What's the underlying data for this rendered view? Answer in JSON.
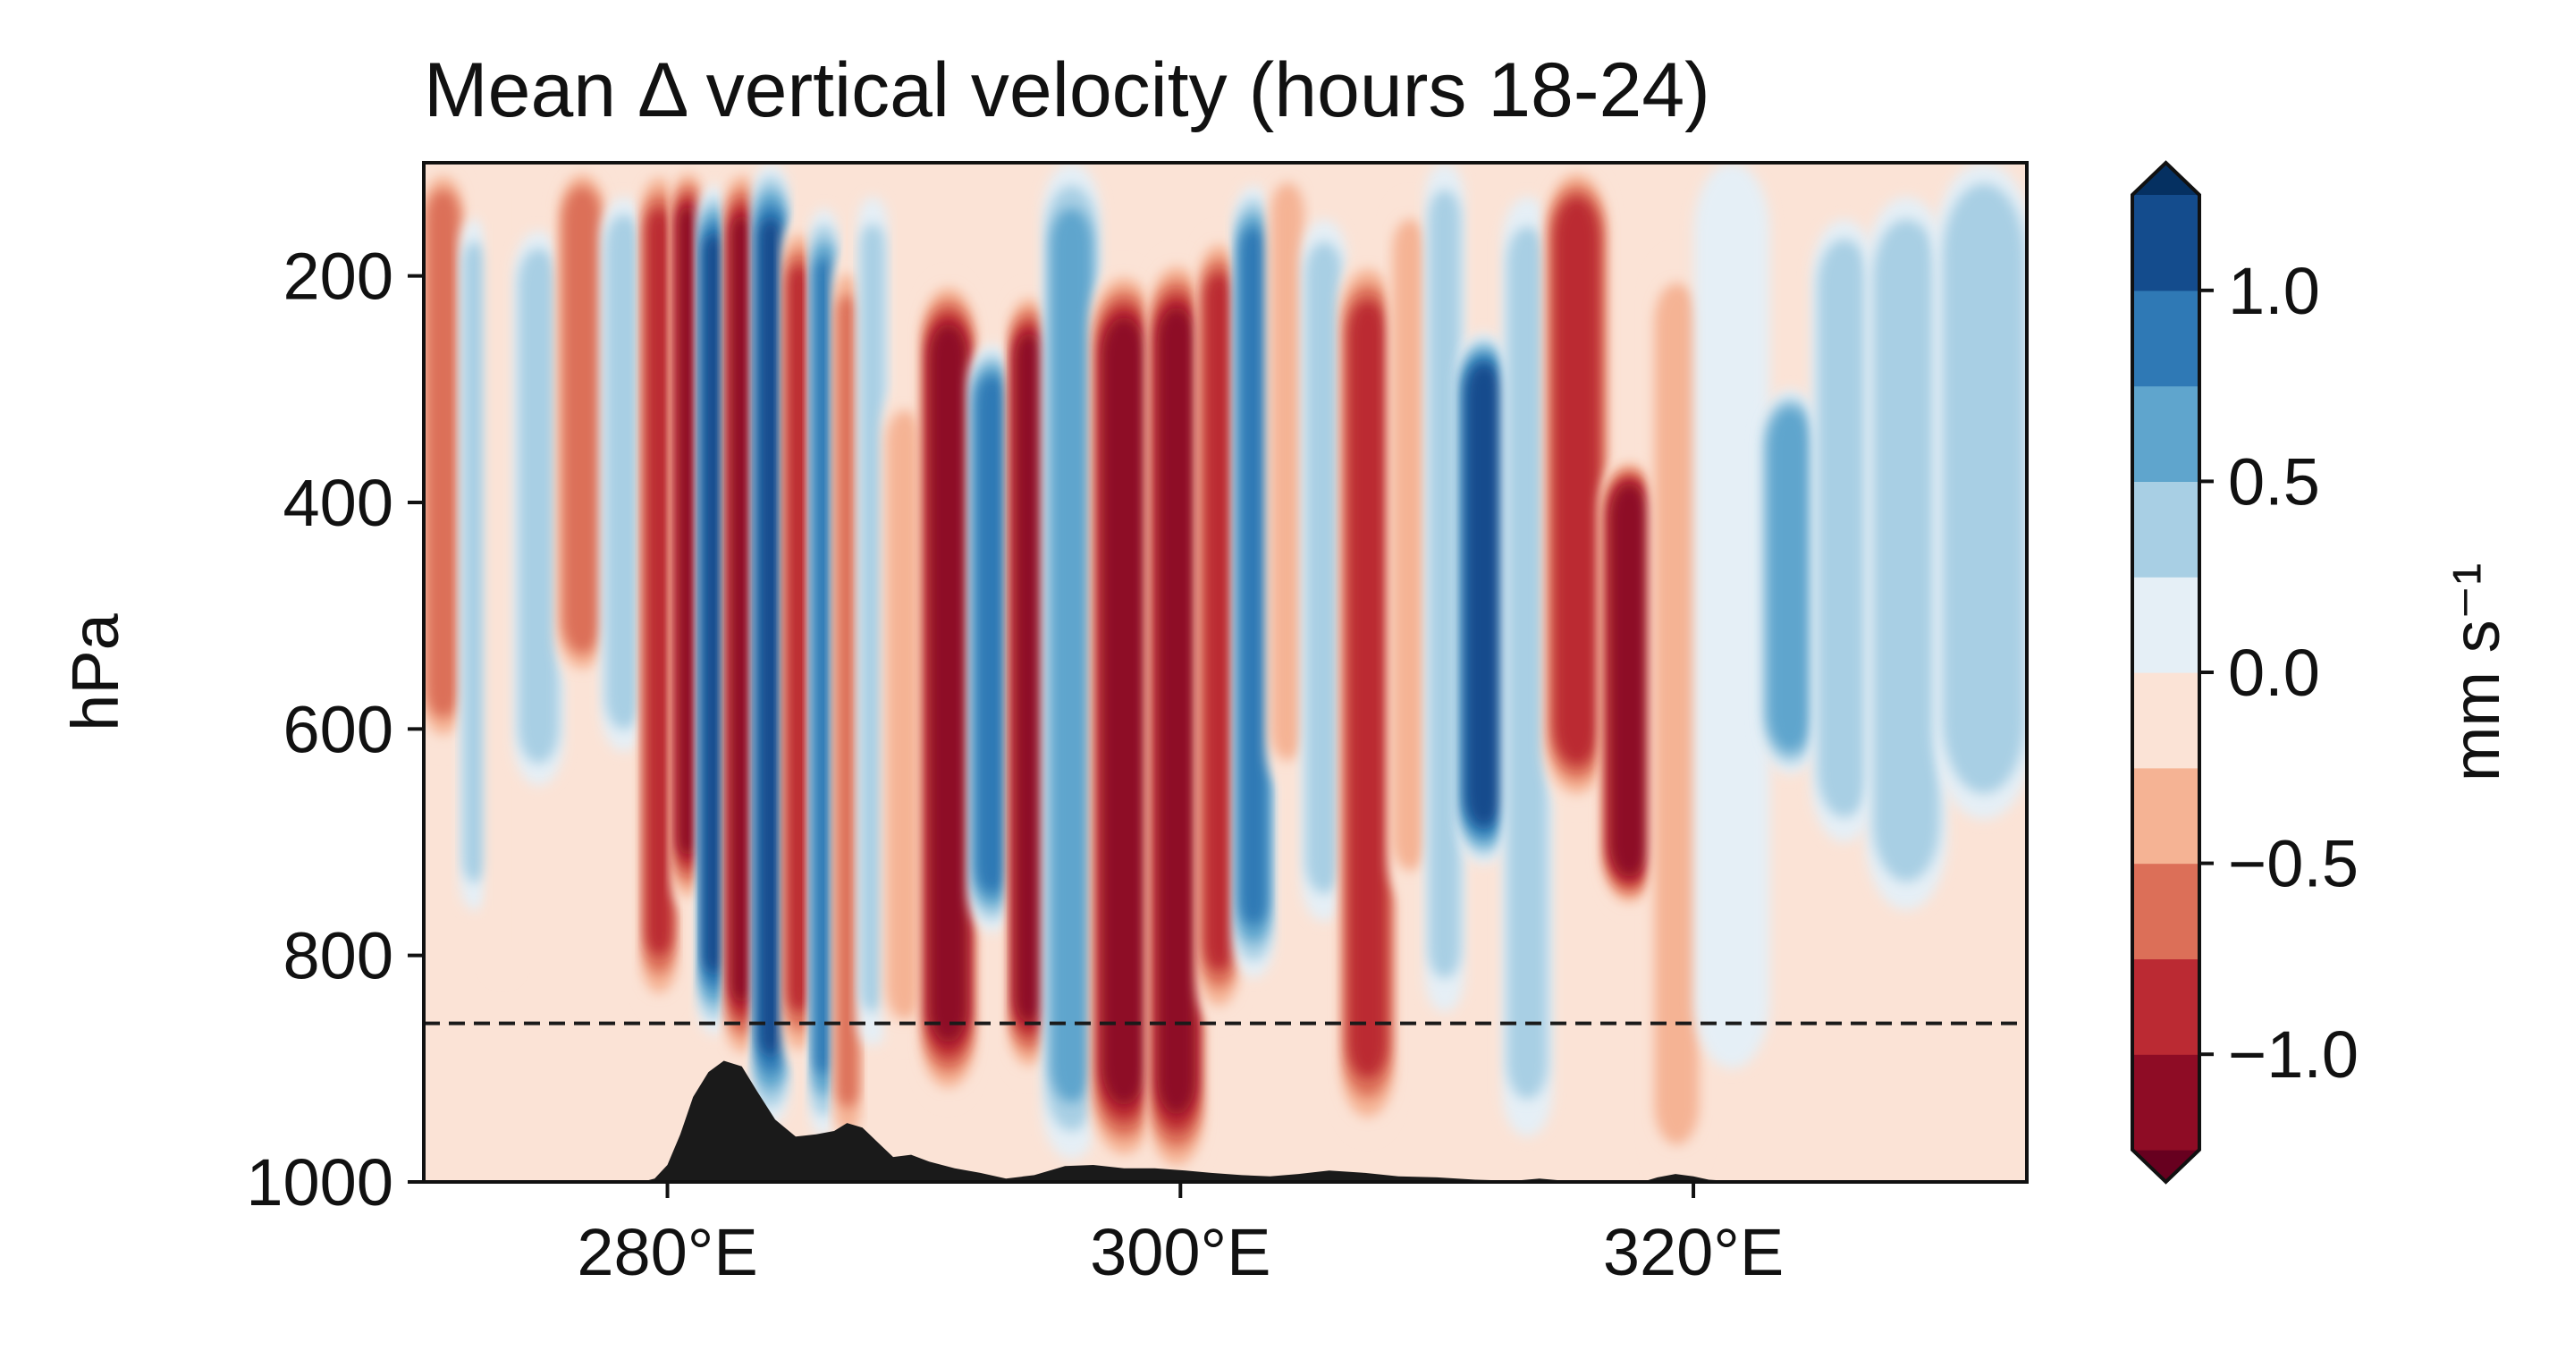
{
  "chart_data": {
    "type": "heatmap",
    "subtype": "filled-contour cross-section",
    "title": "Mean Δ vertical velocity (hours 18-24)",
    "xlabel": "",
    "ylabel": "hPa",
    "xlim": [
      270.5,
      333
    ],
    "ylim": [
      1000,
      100
    ],
    "y_inverted": true,
    "xticks": [
      280,
      300,
      320
    ],
    "xtick_labels": [
      "280°E",
      "300°E",
      "320°E"
    ],
    "yticks": [
      200,
      400,
      600,
      800,
      1000
    ],
    "ytick_labels": [
      "200",
      "400",
      "600",
      "800",
      "1000"
    ],
    "reference_line": {
      "y": 860,
      "style": "dashed",
      "color": "#1a1a1a"
    },
    "colorbar": {
      "label": "mm s⁻¹",
      "extend": "both",
      "levels": [
        -1.25,
        -1.0,
        -0.75,
        -0.5,
        -0.25,
        0.0,
        0.25,
        0.5,
        0.75,
        1.0,
        1.25
      ],
      "colors": [
        "#67001f",
        "#8e0c25",
        "#bb2a33",
        "#dc6f58",
        "#f5b394",
        "#fbe3d6",
        "#e5eff6",
        "#a8cfe4",
        "#5fa5cd",
        "#2f79b5",
        "#144c8d",
        "#053061"
      ],
      "ticks": [
        -1.0,
        -0.5,
        0.0,
        0.5,
        1.0
      ],
      "tick_labels": [
        "−1.0",
        "−0.5",
        "0.0",
        "0.5",
        "1.0"
      ]
    },
    "structure_columns": [
      {
        "x": 271.5,
        "v": -0.8,
        "top": 100,
        "bot": 620
      },
      {
        "x": 272.5,
        "v": 0.7,
        "top": 150,
        "bot": 760
      },
      {
        "x": 273.5,
        "v": -0.4,
        "top": 100,
        "bot": 820
      },
      {
        "x": 274.8,
        "v": 0.55,
        "top": 160,
        "bot": 650
      },
      {
        "x": 276.8,
        "v": -0.9,
        "top": 100,
        "bot": 560
      },
      {
        "x": 278.3,
        "v": 0.6,
        "top": 130,
        "bot": 620
      },
      {
        "x": 279.8,
        "v": -1.1,
        "top": 100,
        "bot": 850
      },
      {
        "x": 280.8,
        "v": -1.4,
        "top": 100,
        "bot": 760
      },
      {
        "x": 281.8,
        "v": 1.3,
        "top": 120,
        "bot": 870
      },
      {
        "x": 282.9,
        "v": -1.4,
        "top": 100,
        "bot": 900
      },
      {
        "x": 284.0,
        "v": 1.3,
        "top": 100,
        "bot": 950
      },
      {
        "x": 285.2,
        "v": -1.0,
        "top": 150,
        "bot": 900
      },
      {
        "x": 286.1,
        "v": 1.1,
        "top": 140,
        "bot": 960
      },
      {
        "x": 287.0,
        "v": -0.9,
        "top": 180,
        "bot": 980
      },
      {
        "x": 288.0,
        "v": 0.6,
        "top": 130,
        "bot": 880
      },
      {
        "x": 289.0,
        "v": -0.7,
        "top": 300,
        "bot": 880
      },
      {
        "x": 291.0,
        "v": -1.4,
        "top": 200,
        "bot": 930
      },
      {
        "x": 292.8,
        "v": 1.1,
        "top": 260,
        "bot": 780
      },
      {
        "x": 294.0,
        "v": -1.3,
        "top": 210,
        "bot": 910
      },
      {
        "x": 295.6,
        "v": 0.9,
        "top": 100,
        "bot": 980
      },
      {
        "x": 297.8,
        "v": -1.4,
        "top": 190,
        "bot": 990
      },
      {
        "x": 300.0,
        "v": -1.4,
        "top": 180,
        "bot": 1000
      },
      {
        "x": 301.6,
        "v": -1.1,
        "top": 160,
        "bot": 860
      },
      {
        "x": 302.8,
        "v": 1.2,
        "top": 120,
        "bot": 820
      },
      {
        "x": 304.2,
        "v": -0.6,
        "top": 100,
        "bot": 650
      },
      {
        "x": 305.5,
        "v": 0.5,
        "top": 150,
        "bot": 770
      },
      {
        "x": 307.2,
        "v": -1.1,
        "top": 180,
        "bot": 960
      },
      {
        "x": 309.3,
        "v": -0.5,
        "top": 130,
        "bot": 750
      },
      {
        "x": 310.0,
        "v": 0.7,
        "top": 100,
        "bot": 850
      },
      {
        "x": 311.9,
        "v": 1.4,
        "top": 250,
        "bot": 720
      },
      {
        "x": 313.5,
        "v": 0.6,
        "top": 130,
        "bot": 960
      },
      {
        "x": 315.2,
        "v": -1.0,
        "top": 100,
        "bot": 670
      },
      {
        "x": 317.9,
        "v": -1.4,
        "top": 360,
        "bot": 760
      },
      {
        "x": 319.0,
        "v": -0.7,
        "top": 180,
        "bot": 1000
      },
      {
        "x": 321.5,
        "v": 0.3,
        "top": 100,
        "bot": 900
      },
      {
        "x": 324.0,
        "v": 0.9,
        "top": 300,
        "bot": 640
      },
      {
        "x": 325.6,
        "v": 0.7,
        "top": 150,
        "bot": 700
      },
      {
        "x": 328.3,
        "v": 0.5,
        "top": 130,
        "bot": 760
      },
      {
        "x": 331.0,
        "v": 0.5,
        "top": 100,
        "bot": 680
      }
    ],
    "terrain": {
      "x": [
        270.5,
        278.6,
        279.0,
        279.5,
        280.0,
        280.5,
        281.0,
        281.6,
        282.2,
        282.9,
        283.5,
        284.2,
        285.0,
        285.8,
        286.5,
        287.0,
        287.6,
        288.2,
        288.8,
        289.5,
        290.2,
        291.2,
        292.2,
        293.2,
        294.3,
        295.5,
        296.6,
        297.8,
        299.0,
        300.2,
        301.2,
        302.4,
        303.5,
        304.6,
        305.8,
        307.2,
        308.5,
        310.0,
        311.5,
        313.0,
        314.0,
        315.0,
        316.5,
        318.0,
        318.6,
        319.3,
        320.0,
        320.6,
        322.0,
        333.0
      ],
      "p": [
        1000,
        1000,
        1000,
        997,
        985,
        958,
        925,
        903,
        893,
        898,
        920,
        945,
        960,
        958,
        955,
        948,
        952,
        965,
        978,
        976,
        982,
        988,
        992,
        997,
        994,
        986,
        985,
        988,
        988,
        990,
        992,
        994,
        995,
        993,
        990,
        992,
        995,
        996,
        998,
        999,
        997,
        999,
        1000,
        1000,
        996,
        993,
        995,
        998,
        1000,
        1000
      ],
      "color": "#1a1a1a"
    }
  }
}
